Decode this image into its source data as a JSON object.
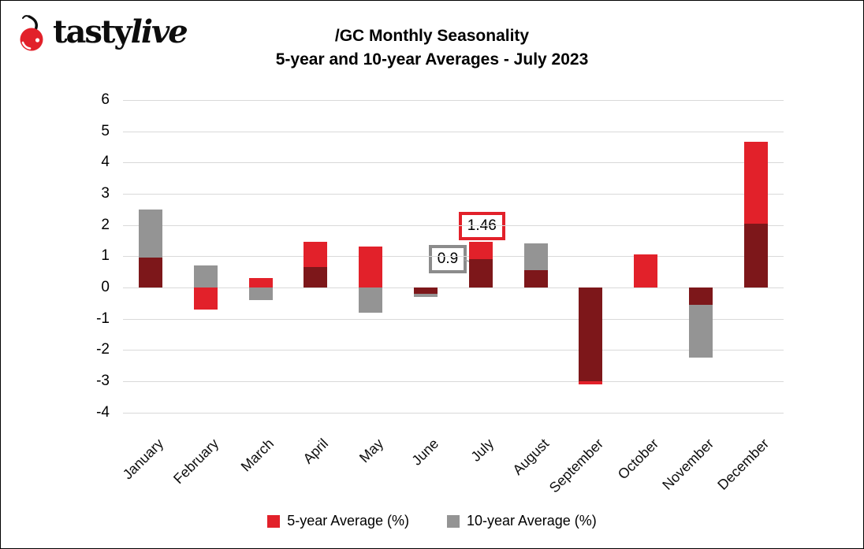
{
  "logo": {
    "brand_tasty": "tasty",
    "brand_live": "live"
  },
  "title": {
    "line1": "/GC Monthly Seasonality",
    "line2": "5-year and 10-year Averages - July 2023"
  },
  "legend": [
    {
      "label": "5-year Average (%)",
      "color": "#e2212a"
    },
    {
      "label": "10-year Average (%)",
      "color": "#949494"
    }
  ],
  "annotations": [
    {
      "text": "1.46",
      "month_index": 6,
      "value": 1.46,
      "border_color": "#e2212a",
      "placement": "above"
    },
    {
      "text": "0.9",
      "month_index": 6,
      "value": 0.9,
      "border_color": "#8c8c8c",
      "placement": "left"
    }
  ],
  "chart_data": {
    "type": "bar",
    "title": "/GC Monthly Seasonality 5-year and 10-year Averages - July 2023",
    "categories": [
      "January",
      "February",
      "March",
      "April",
      "May",
      "June",
      "July",
      "August",
      "September",
      "October",
      "November",
      "December"
    ],
    "series": [
      {
        "name": "5-year Average (%)",
        "color": "#e2212a",
        "values": [
          0.95,
          -0.7,
          0.3,
          1.45,
          1.3,
          -0.2,
          1.46,
          0.55,
          -3.1,
          1.05,
          -0.55,
          4.65
        ]
      },
      {
        "name": "10-year Average (%)",
        "color": "#949494",
        "values": [
          2.5,
          0.7,
          -0.4,
          0.65,
          -0.8,
          -0.3,
          0.9,
          1.4,
          -3.0,
          0.0,
          -2.25,
          2.05
        ]
      }
    ],
    "overlap_color": "#7d171a",
    "bar_style": "overlaid",
    "xlabel": "",
    "ylabel": "",
    "ylim": [
      -4,
      6
    ],
    "yticks": [
      6,
      5,
      4,
      3,
      2,
      1,
      0,
      -1,
      -2,
      -3,
      -4
    ],
    "gridlines": true,
    "gridline_color": "#d9d9d9",
    "legend_position": "bottom"
  }
}
